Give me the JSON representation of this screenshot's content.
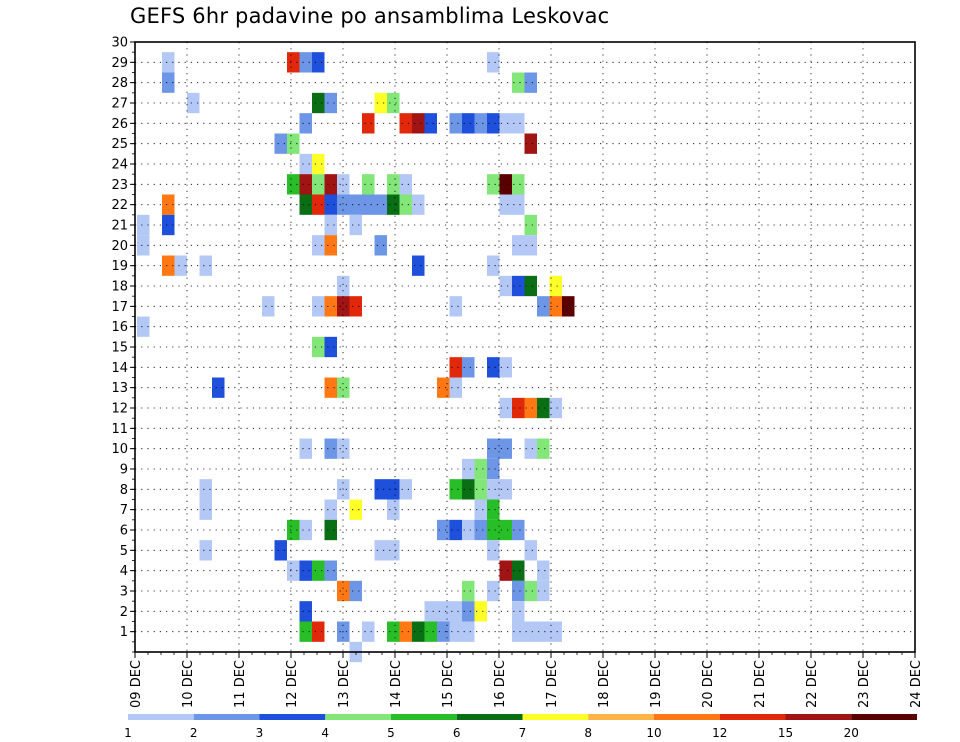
{
  "chart_data": {
    "type": "heatmap",
    "title": "GEFS 6hr padavine po ansamblima Leskovac",
    "y_ticks": [
      1,
      2,
      3,
      4,
      5,
      6,
      7,
      8,
      9,
      10,
      11,
      12,
      13,
      14,
      15,
      16,
      17,
      18,
      19,
      20,
      21,
      22,
      23,
      24,
      25,
      26,
      27,
      28,
      29,
      30
    ],
    "ylim": [
      0,
      30
    ],
    "x_ticks": [
      "09 DEC",
      "10 DEC",
      "11 DEC",
      "12 DEC",
      "13 DEC",
      "14 DEC",
      "15 DEC",
      "16 DEC",
      "17 DEC",
      "18 DEC",
      "19 DEC",
      "20 DEC",
      "21 DEC",
      "22 DEC",
      "23 DEC",
      "24 DEC"
    ],
    "x_unit": "6-hour step starting 09 DEC 00Z",
    "grid": true,
    "colorbar": {
      "labels": [
        "1",
        "2",
        "3",
        "4",
        "5",
        "6",
        "7",
        "8",
        "10",
        "12",
        "15",
        "20"
      ],
      "colors": [
        "#b4c8f5",
        "#6e96e6",
        "#1e50dc",
        "#82e678",
        "#28be28",
        "#0a6e14",
        "#ffff28",
        "#ffb446",
        "#ff7814",
        "#e1280a",
        "#a01414",
        "#5a0000"
      ]
    },
    "cells": [
      [
        2,
        29,
        1
      ],
      [
        12,
        29,
        10
      ],
      [
        13,
        29,
        2
      ],
      [
        14,
        29,
        3
      ],
      [
        28,
        29,
        1
      ],
      [
        2,
        28,
        2
      ],
      [
        30,
        28,
        4
      ],
      [
        31,
        28,
        2
      ],
      [
        4,
        27,
        1
      ],
      [
        14,
        27,
        6
      ],
      [
        15,
        27,
        2
      ],
      [
        19,
        27,
        7
      ],
      [
        20,
        27,
        4
      ],
      [
        13,
        26,
        2
      ],
      [
        18,
        26,
        10
      ],
      [
        21,
        26,
        10
      ],
      [
        22,
        26,
        11
      ],
      [
        23,
        26,
        3
      ],
      [
        25,
        26,
        2
      ],
      [
        26,
        26,
        3
      ],
      [
        27,
        26,
        2
      ],
      [
        28,
        26,
        3
      ],
      [
        29,
        26,
        1
      ],
      [
        30,
        26,
        1
      ],
      [
        11,
        25,
        2
      ],
      [
        12,
        25,
        4
      ],
      [
        31,
        25,
        11
      ],
      [
        13,
        24,
        1
      ],
      [
        14,
        24,
        7
      ],
      [
        12,
        23,
        5
      ],
      [
        13,
        23,
        11
      ],
      [
        14,
        23,
        4
      ],
      [
        15,
        23,
        11
      ],
      [
        16,
        23,
        1
      ],
      [
        18,
        23,
        4
      ],
      [
        20,
        23,
        4
      ],
      [
        21,
        23,
        1
      ],
      [
        28,
        23,
        4
      ],
      [
        29,
        23,
        12
      ],
      [
        30,
        23,
        4
      ],
      [
        13,
        22,
        6
      ],
      [
        14,
        22,
        10
      ],
      [
        15,
        22,
        3
      ],
      [
        16,
        22,
        2
      ],
      [
        17,
        22,
        2
      ],
      [
        18,
        22,
        2
      ],
      [
        19,
        22,
        2
      ],
      [
        20,
        22,
        6
      ],
      [
        21,
        22,
        4
      ],
      [
        22,
        22,
        1
      ],
      [
        29,
        22,
        1
      ],
      [
        30,
        22,
        1
      ],
      [
        2,
        22,
        9
      ],
      [
        0,
        21,
        1
      ],
      [
        2,
        21,
        3
      ],
      [
        15,
        21,
        1
      ],
      [
        17,
        21,
        1
      ],
      [
        31,
        21,
        4
      ],
      [
        0,
        20,
        1
      ],
      [
        14,
        20,
        1
      ],
      [
        15,
        20,
        9
      ],
      [
        19,
        20,
        2
      ],
      [
        30,
        20,
        1
      ],
      [
        31,
        20,
        1
      ],
      [
        2,
        19,
        9
      ],
      [
        3,
        19,
        1
      ],
      [
        5,
        19,
        1
      ],
      [
        22,
        19,
        3
      ],
      [
        28,
        19,
        1
      ],
      [
        16,
        18,
        1
      ],
      [
        29,
        18,
        1
      ],
      [
        30,
        18,
        3
      ],
      [
        31,
        18,
        6
      ],
      [
        33,
        18,
        7
      ],
      [
        10,
        17,
        1
      ],
      [
        14,
        17,
        1
      ],
      [
        15,
        17,
        9
      ],
      [
        16,
        17,
        11
      ],
      [
        17,
        17,
        10
      ],
      [
        25,
        17,
        1
      ],
      [
        32,
        17,
        2
      ],
      [
        33,
        17,
        9
      ],
      [
        34,
        17,
        12
      ],
      [
        0,
        16,
        1
      ],
      [
        14,
        15,
        4
      ],
      [
        15,
        15,
        3
      ],
      [
        25,
        14,
        10
      ],
      [
        26,
        14,
        2
      ],
      [
        28,
        14,
        3
      ],
      [
        29,
        14,
        1
      ],
      [
        6,
        13,
        3
      ],
      [
        15,
        13,
        9
      ],
      [
        16,
        13,
        4
      ],
      [
        24,
        13,
        9
      ],
      [
        25,
        13,
        1
      ],
      [
        29,
        12,
        1
      ],
      [
        30,
        12,
        10
      ],
      [
        31,
        12,
        9
      ],
      [
        32,
        12,
        6
      ],
      [
        33,
        12,
        1
      ],
      [
        13,
        10,
        1
      ],
      [
        15,
        10,
        2
      ],
      [
        16,
        10,
        1
      ],
      [
        28,
        10,
        2
      ],
      [
        29,
        10,
        2
      ],
      [
        31,
        10,
        1
      ],
      [
        32,
        10,
        4
      ],
      [
        28,
        9,
        2
      ],
      [
        26,
        9,
        1
      ],
      [
        27,
        9,
        4
      ],
      [
        16,
        8,
        1
      ],
      [
        5,
        8,
        1
      ],
      [
        19,
        8,
        3
      ],
      [
        20,
        8,
        3
      ],
      [
        21,
        8,
        1
      ],
      [
        25,
        8,
        5
      ],
      [
        26,
        8,
        6
      ],
      [
        27,
        8,
        4
      ],
      [
        28,
        8,
        1
      ],
      [
        29,
        8,
        1
      ],
      [
        5,
        7,
        1
      ],
      [
        15,
        7,
        1
      ],
      [
        17,
        7,
        7
      ],
      [
        20,
        7,
        1
      ],
      [
        27,
        7,
        1
      ],
      [
        28,
        7,
        5
      ],
      [
        12,
        6,
        5
      ],
      [
        13,
        6,
        1
      ],
      [
        15,
        6,
        6
      ],
      [
        24,
        6,
        2
      ],
      [
        25,
        6,
        3
      ],
      [
        26,
        6,
        1
      ],
      [
        27,
        6,
        2
      ],
      [
        28,
        6,
        5
      ],
      [
        29,
        6,
        5
      ],
      [
        30,
        6,
        2
      ],
      [
        5,
        5,
        1
      ],
      [
        11,
        5,
        3
      ],
      [
        19,
        5,
        1
      ],
      [
        20,
        5,
        1
      ],
      [
        28,
        5,
        1
      ],
      [
        31,
        5,
        1
      ],
      [
        12,
        4,
        1
      ],
      [
        13,
        4,
        3
      ],
      [
        14,
        4,
        5
      ],
      [
        15,
        4,
        2
      ],
      [
        29,
        4,
        11
      ],
      [
        30,
        4,
        6
      ],
      [
        32,
        4,
        1
      ],
      [
        16,
        3,
        9
      ],
      [
        17,
        3,
        2
      ],
      [
        26,
        3,
        4
      ],
      [
        28,
        3,
        1
      ],
      [
        30,
        3,
        2
      ],
      [
        31,
        3,
        4
      ],
      [
        32,
        3,
        1
      ],
      [
        13,
        2,
        3
      ],
      [
        23,
        2,
        1
      ],
      [
        24,
        2,
        1
      ],
      [
        25,
        2,
        1
      ],
      [
        26,
        2,
        2
      ],
      [
        27,
        2,
        7
      ],
      [
        30,
        2,
        1
      ],
      [
        13,
        1,
        5
      ],
      [
        14,
        1,
        10
      ],
      [
        16,
        1,
        2
      ],
      [
        18,
        1,
        1
      ],
      [
        20,
        1,
        5
      ],
      [
        21,
        1,
        9
      ],
      [
        22,
        1,
        6
      ],
      [
        23,
        1,
        5
      ],
      [
        24,
        1,
        2
      ],
      [
        25,
        1,
        1
      ],
      [
        26,
        1,
        1
      ],
      [
        30,
        1,
        1
      ],
      [
        31,
        1,
        1
      ],
      [
        32,
        1,
        1
      ],
      [
        33,
        1,
        1
      ],
      [
        17,
        0,
        1
      ]
    ]
  }
}
